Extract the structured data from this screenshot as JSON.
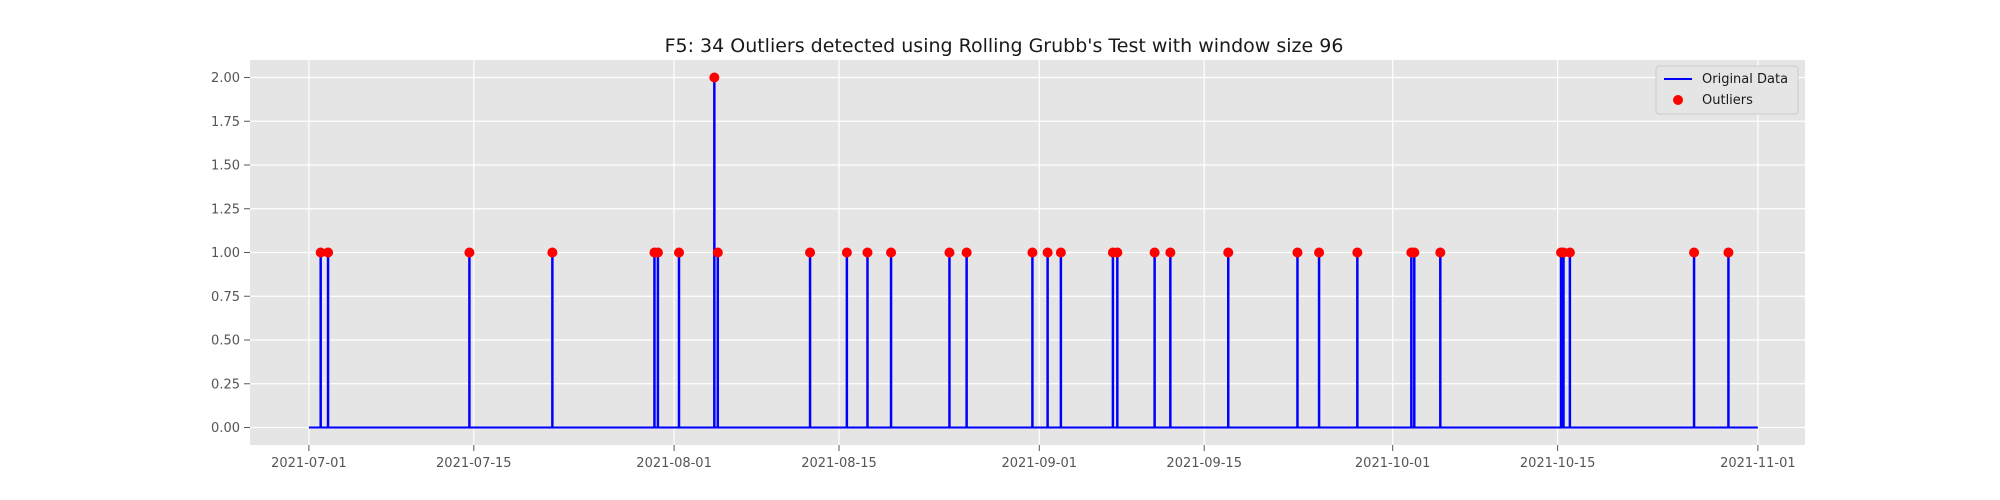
{
  "chart_data": {
    "type": "line",
    "title": "F5: 34 Outliers detected using Rolling Grubb's Test with window size 96",
    "xlabel": "",
    "ylabel": "",
    "x_range": [
      "2021-07-01",
      "2021-11-01"
    ],
    "xlim": [
      "2021-06-26",
      "2021-11-05"
    ],
    "ylim": [
      -0.1,
      2.1
    ],
    "x_ticks": [
      "2021-07-01",
      "2021-07-15",
      "2021-08-01",
      "2021-08-15",
      "2021-09-01",
      "2021-09-15",
      "2021-10-01",
      "2021-10-15",
      "2021-11-01"
    ],
    "y_ticks": [
      "0.00",
      "0.25",
      "0.50",
      "0.75",
      "1.00",
      "1.25",
      "1.50",
      "1.75",
      "2.00"
    ],
    "grid": true,
    "legend_position": "top-right",
    "colors": {
      "line": "#0000ff",
      "outliers": "#ff0000",
      "plot_background": "#e5e5e5",
      "grid": "#ffffff"
    },
    "series": [
      {
        "name": "Original Data",
        "kind": "line",
        "baseline": 0,
        "spikes": [
          {
            "x": "2021-07-02 00:00",
            "y": 1
          },
          {
            "x": "2021-07-02 15:00",
            "y": 1
          },
          {
            "x": "2021-07-14 15:00",
            "y": 1
          },
          {
            "x": "2021-07-21 16:00",
            "y": 1
          },
          {
            "x": "2021-07-30 08:00",
            "y": 1
          },
          {
            "x": "2021-07-30 15:00",
            "y": 1
          },
          {
            "x": "2021-08-01 10:00",
            "y": 1
          },
          {
            "x": "2021-08-04 10:00",
            "y": 2
          },
          {
            "x": "2021-08-04 17:00",
            "y": 1
          },
          {
            "x": "2021-08-12 13:00",
            "y": 1
          },
          {
            "x": "2021-08-15 16:00",
            "y": 1
          },
          {
            "x": "2021-08-17 10:00",
            "y": 1
          },
          {
            "x": "2021-08-19 10:00",
            "y": 1
          },
          {
            "x": "2021-08-24 09:00",
            "y": 1
          },
          {
            "x": "2021-08-25 20:00",
            "y": 1
          },
          {
            "x": "2021-08-31 10:00",
            "y": 1
          },
          {
            "x": "2021-09-01 17:00",
            "y": 1
          },
          {
            "x": "2021-09-02 20:00",
            "y": 1
          },
          {
            "x": "2021-09-07 06:00",
            "y": 1
          },
          {
            "x": "2021-09-07 15:00",
            "y": 1
          },
          {
            "x": "2021-09-10 19:00",
            "y": 1
          },
          {
            "x": "2021-09-12 03:00",
            "y": 1
          },
          {
            "x": "2021-09-17 01:00",
            "y": 1
          },
          {
            "x": "2021-09-22 22:00",
            "y": 1
          },
          {
            "x": "2021-09-24 18:00",
            "y": 1
          },
          {
            "x": "2021-09-28 00:00",
            "y": 1
          },
          {
            "x": "2021-10-02 14:00",
            "y": 1
          },
          {
            "x": "2021-10-02 20:00",
            "y": 1
          },
          {
            "x": "2021-10-05 01:00",
            "y": 1
          },
          {
            "x": "2021-10-15 07:00",
            "y": 1
          },
          {
            "x": "2021-10-15 12:00",
            "y": 1
          },
          {
            "x": "2021-10-16 01:00",
            "y": 1
          },
          {
            "x": "2021-10-26 14:00",
            "y": 1
          },
          {
            "x": "2021-10-29 12:00",
            "y": 1
          }
        ]
      },
      {
        "name": "Outliers",
        "kind": "scatter",
        "points": [
          {
            "x": "2021-07-02 00:00",
            "y": 1
          },
          {
            "x": "2021-07-02 15:00",
            "y": 1
          },
          {
            "x": "2021-07-14 15:00",
            "y": 1
          },
          {
            "x": "2021-07-21 16:00",
            "y": 1
          },
          {
            "x": "2021-07-30 08:00",
            "y": 1
          },
          {
            "x": "2021-07-30 15:00",
            "y": 1
          },
          {
            "x": "2021-08-01 10:00",
            "y": 1
          },
          {
            "x": "2021-08-04 10:00",
            "y": 2
          },
          {
            "x": "2021-08-04 17:00",
            "y": 1
          },
          {
            "x": "2021-08-12 13:00",
            "y": 1
          },
          {
            "x": "2021-08-15 16:00",
            "y": 1
          },
          {
            "x": "2021-08-17 10:00",
            "y": 1
          },
          {
            "x": "2021-08-19 10:00",
            "y": 1
          },
          {
            "x": "2021-08-24 09:00",
            "y": 1
          },
          {
            "x": "2021-08-25 20:00",
            "y": 1
          },
          {
            "x": "2021-08-31 10:00",
            "y": 1
          },
          {
            "x": "2021-09-01 17:00",
            "y": 1
          },
          {
            "x": "2021-09-02 20:00",
            "y": 1
          },
          {
            "x": "2021-09-07 06:00",
            "y": 1
          },
          {
            "x": "2021-09-07 15:00",
            "y": 1
          },
          {
            "x": "2021-09-10 19:00",
            "y": 1
          },
          {
            "x": "2021-09-12 03:00",
            "y": 1
          },
          {
            "x": "2021-09-17 01:00",
            "y": 1
          },
          {
            "x": "2021-09-22 22:00",
            "y": 1
          },
          {
            "x": "2021-09-24 18:00",
            "y": 1
          },
          {
            "x": "2021-09-28 00:00",
            "y": 1
          },
          {
            "x": "2021-10-02 14:00",
            "y": 1
          },
          {
            "x": "2021-10-02 20:00",
            "y": 1
          },
          {
            "x": "2021-10-05 01:00",
            "y": 1
          },
          {
            "x": "2021-10-15 07:00",
            "y": 1
          },
          {
            "x": "2021-10-15 12:00",
            "y": 1
          },
          {
            "x": "2021-10-16 01:00",
            "y": 1
          },
          {
            "x": "2021-10-26 14:00",
            "y": 1
          },
          {
            "x": "2021-10-29 12:00",
            "y": 1
          }
        ]
      }
    ]
  }
}
